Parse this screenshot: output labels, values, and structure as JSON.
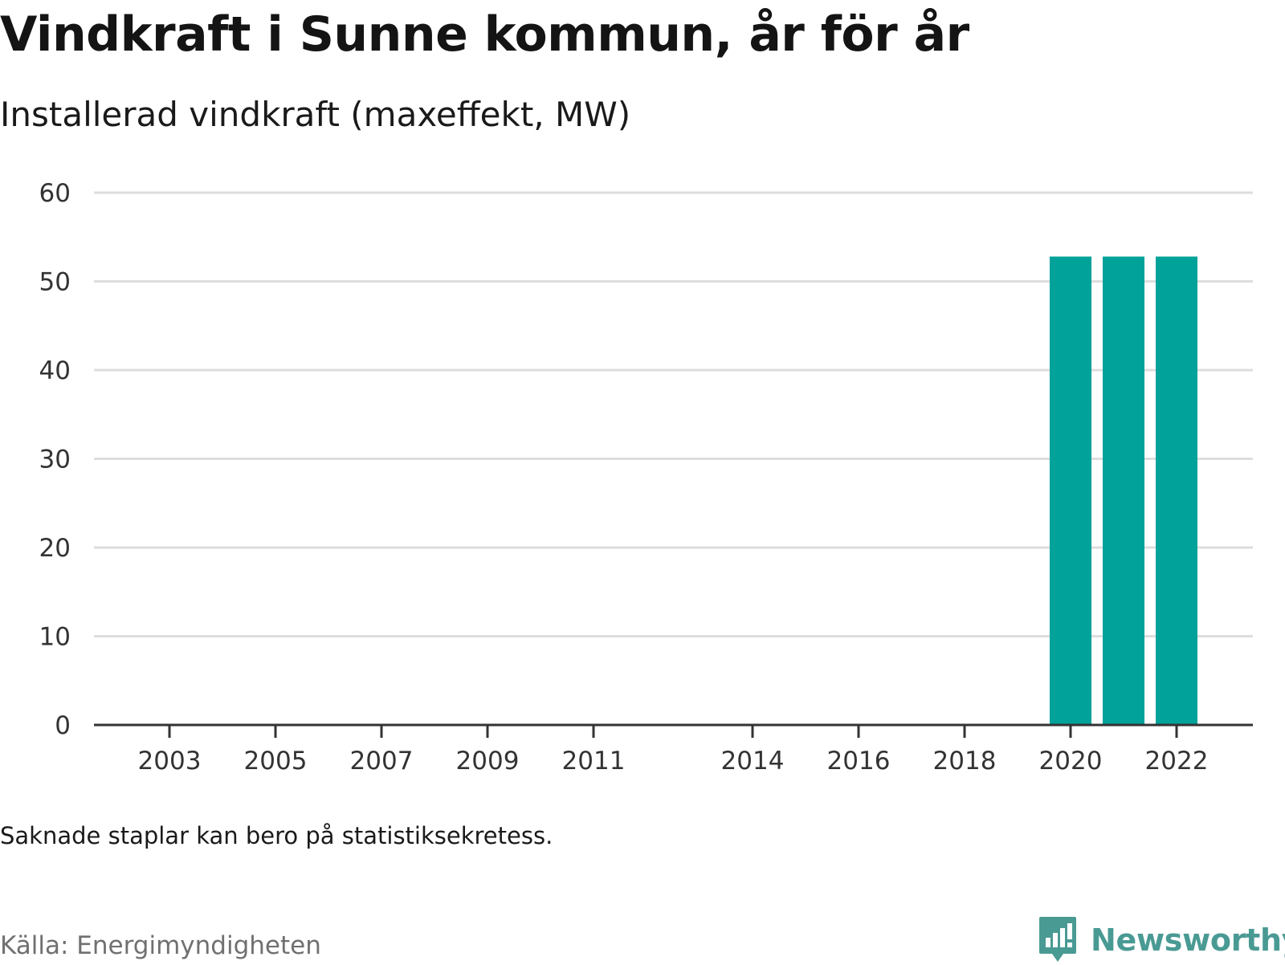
{
  "header": {
    "title": "Vindkraft i Sunne kommun, år för år",
    "subtitle": "Installerad vindkraft (maxeffekt, MW)"
  },
  "footer": {
    "note": "Saknade staplar kan bero på statistiksekretess.",
    "source": "Källa: Energimyndigheten",
    "brand": "Newsworthy"
  },
  "colors": {
    "bar": "#00a29a",
    "grid": "#dddddd",
    "axis": "#333333",
    "brand": "#4a9a94"
  },
  "chart_data": {
    "type": "bar",
    "title": "Vindkraft i Sunne kommun, år för år",
    "subtitle": "Installerad vindkraft (maxeffekt, MW)",
    "xlabel": "",
    "ylabel": "",
    "categories": [
      "2003",
      "2004",
      "2005",
      "2006",
      "2007",
      "2008",
      "2009",
      "2010",
      "2011",
      "2012",
      "2013",
      "2014",
      "2015",
      "2016",
      "2017",
      "2018",
      "2019",
      "2020",
      "2021",
      "2022"
    ],
    "x_tick_labels": [
      "2003",
      "2005",
      "2007",
      "2009",
      "2011",
      "2014",
      "2016",
      "2018",
      "2020",
      "2022"
    ],
    "values": [
      null,
      null,
      null,
      null,
      null,
      null,
      null,
      null,
      null,
      null,
      null,
      null,
      null,
      null,
      null,
      null,
      null,
      52.8,
      52.8,
      52.8
    ],
    "y_ticks": [
      0,
      10,
      20,
      30,
      40,
      50,
      60
    ],
    "ylim": [
      0,
      60
    ],
    "grid": true,
    "legend": "none"
  }
}
